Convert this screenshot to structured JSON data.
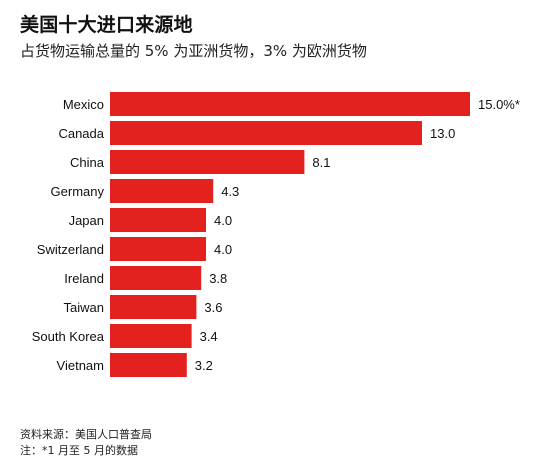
{
  "title": "美国十大进口来源地",
  "subtitle": "占货物运输总量的 5% 为亚洲货物，3% 为欧洲货物",
  "colors": {
    "bar": "#e3211f",
    "text": "#111111"
  },
  "chart_data": {
    "type": "bar",
    "orientation": "horizontal",
    "categories": [
      "Mexico",
      "Canada",
      "China",
      "Germany",
      "Japan",
      "Switzerland",
      "Ireland",
      "Taiwan",
      "South Korea",
      "Vietnam"
    ],
    "values": [
      15.0,
      13.0,
      8.1,
      4.3,
      4.0,
      4.0,
      3.8,
      3.6,
      3.4,
      3.2
    ],
    "value_labels": [
      "15.0%*",
      "13.0",
      "8.1",
      "4.3",
      "4.0",
      "4.0",
      "3.8",
      "3.6",
      "3.4",
      "3.2"
    ],
    "xlim": [
      0,
      15.0
    ],
    "grid": false,
    "legend": "none"
  },
  "footer": {
    "source": "资料来源：美国人口普查局",
    "note": "注：*1 月至 5 月的数据"
  }
}
